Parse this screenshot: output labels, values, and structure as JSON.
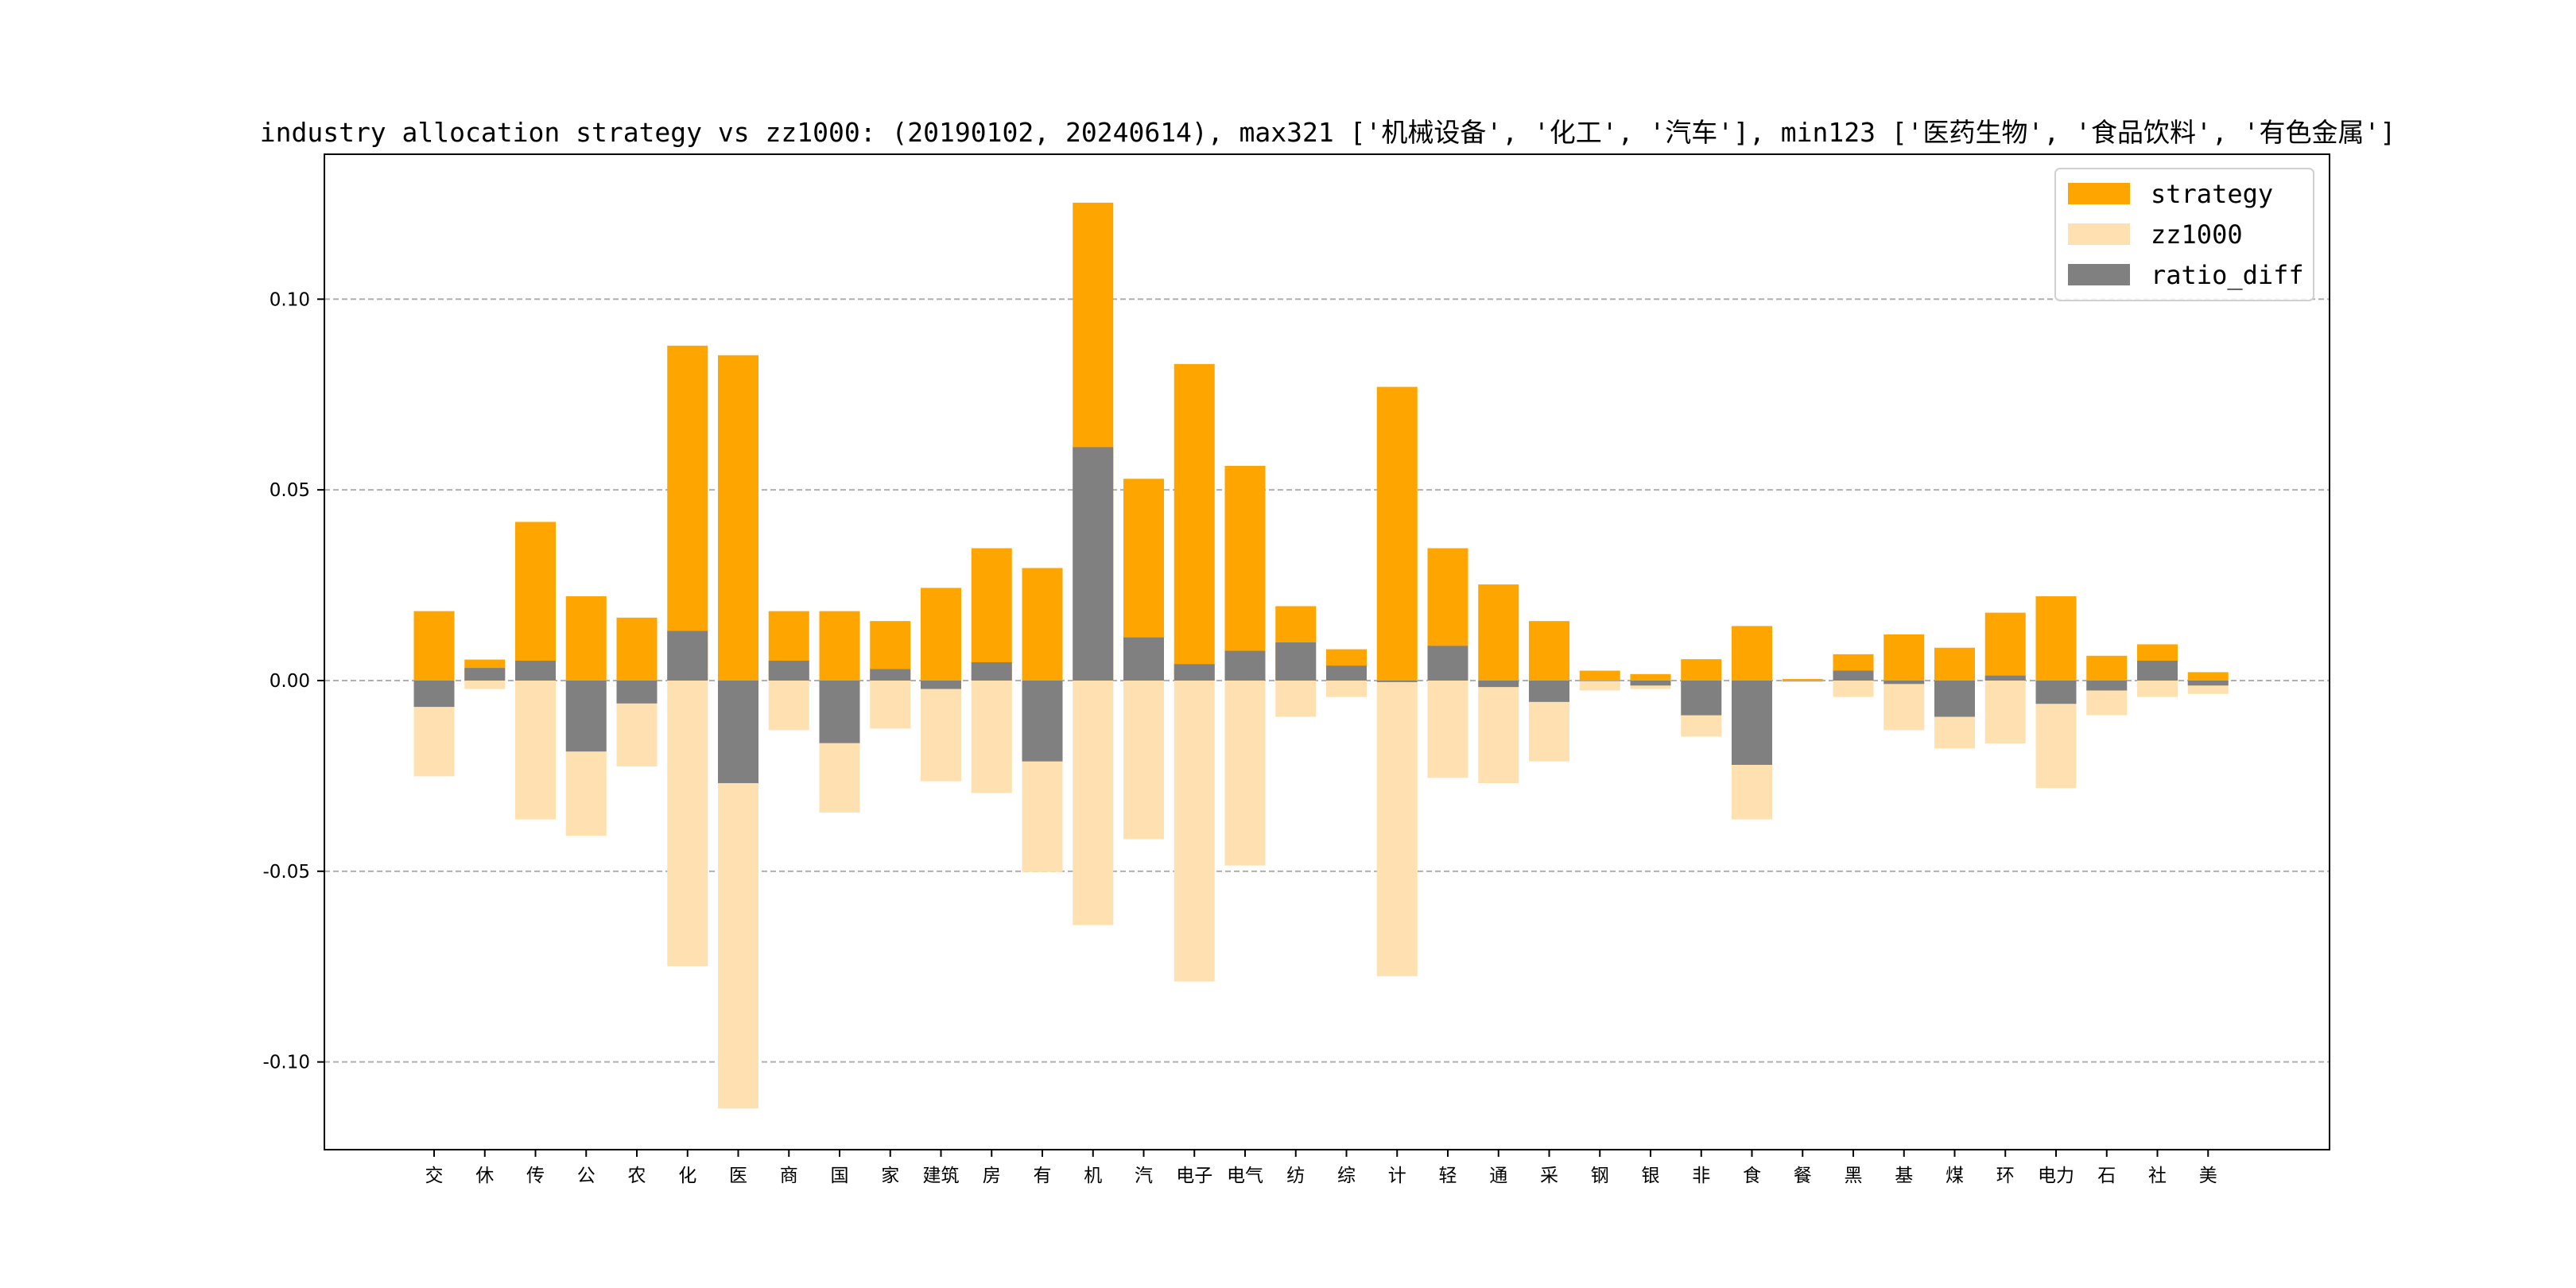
{
  "chart_data": {
    "type": "bar",
    "title": "industry allocation strategy vs zz1000: (20190102, 20240614), max321 ['机械设备', '化工', '汽车'], min123 ['医药生物', '食品饮料', '有色金属']",
    "xlabel": "",
    "ylabel": "",
    "ylim": [
      -0.123,
      0.138
    ],
    "yticks": [
      -0.1,
      -0.05,
      0.0,
      0.05,
      0.1
    ],
    "ytick_labels": [
      "-0.10",
      "-0.05",
      "0.00",
      "0.05",
      "0.10"
    ],
    "grid": "horizontal dashed",
    "legend_position": "upper right",
    "categories": [
      "交",
      "休",
      "传",
      "公",
      "农",
      "化",
      "医",
      "商",
      "国",
      "家",
      "建筑",
      "房",
      "有",
      "机",
      "汽",
      "电子",
      "电气",
      "纺",
      "综",
      "计",
      "轻",
      "通",
      "采",
      "钢",
      "银",
      "非",
      "食",
      "餐",
      "黑",
      "基",
      "煤",
      "环",
      "电力",
      "石",
      "社",
      "美"
    ],
    "series": [
      {
        "name": "strategy",
        "color": "#FFA500",
        "values": [
          0.0182,
          0.0055,
          0.0416,
          0.0221,
          0.0165,
          0.0878,
          0.0853,
          0.0182,
          0.0182,
          0.0156,
          0.0243,
          0.0347,
          0.0295,
          0.1253,
          0.0529,
          0.083,
          0.0563,
          0.0195,
          0.0082,
          0.077,
          0.0347,
          0.0252,
          0.0156,
          0.0026,
          0.0017,
          0.0056,
          0.0143,
          0.0004,
          0.0069,
          0.0121,
          0.0086,
          0.0178,
          0.0221,
          0.0065,
          0.0095,
          0.0022
        ]
      },
      {
        "name": "zz1000",
        "color": "#FFE0B0",
        "values": [
          -0.0251,
          -0.0022,
          -0.0364,
          -0.0407,
          -0.0225,
          -0.0749,
          -0.1122,
          -0.013,
          -0.0346,
          -0.0126,
          -0.0264,
          -0.0295,
          -0.0502,
          -0.0641,
          -0.0416,
          -0.0789,
          -0.0485,
          -0.0095,
          -0.0043,
          -0.0775,
          -0.0255,
          -0.0269,
          -0.0212,
          -0.0026,
          -0.0022,
          -0.0147,
          -0.0364,
          -0.0004,
          -0.0043,
          -0.013,
          -0.0178,
          -0.0165,
          -0.0282,
          -0.0091,
          -0.0043,
          -0.0035
        ]
      },
      {
        "name": "ratio_diff",
        "color": "#808080",
        "values": [
          -0.0069,
          0.0033,
          0.0052,
          -0.0186,
          -0.006,
          0.013,
          -0.0269,
          0.0052,
          -0.0164,
          0.003,
          -0.0022,
          0.0048,
          -0.0212,
          0.0612,
          0.0113,
          0.0043,
          0.0078,
          0.01,
          0.0039,
          -0.0004,
          0.0091,
          -0.0017,
          -0.0056,
          0.0,
          -0.0013,
          -0.0091,
          -0.0221,
          0.0,
          0.0026,
          -0.0009,
          -0.0095,
          0.0013,
          -0.0061,
          -0.0026,
          0.0052,
          -0.0013
        ]
      }
    ]
  }
}
